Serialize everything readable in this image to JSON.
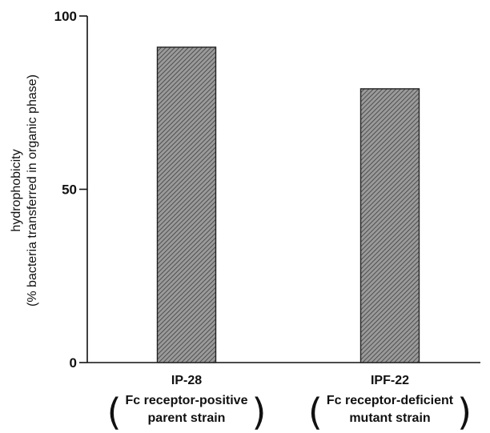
{
  "chart_data": {
    "type": "bar",
    "ylabel_lines": [
      "hydrophobicity",
      "(% bacteria transferred in organic phase)"
    ],
    "ylim": [
      0,
      100
    ],
    "yticks": [
      0,
      50,
      100
    ],
    "grid": false,
    "categories": [
      {
        "name": "IP-28",
        "subtitle_lines": [
          "Fc receptor-positive",
          "parent strain"
        ]
      },
      {
        "name": "IPF-22",
        "subtitle_lines": [
          "Fc receptor-deficient",
          "mutant strain"
        ]
      }
    ],
    "values": [
      91,
      79
    ],
    "bar_fill": "#9a9a9a",
    "bar_hatch": "#3c3c3c"
  }
}
